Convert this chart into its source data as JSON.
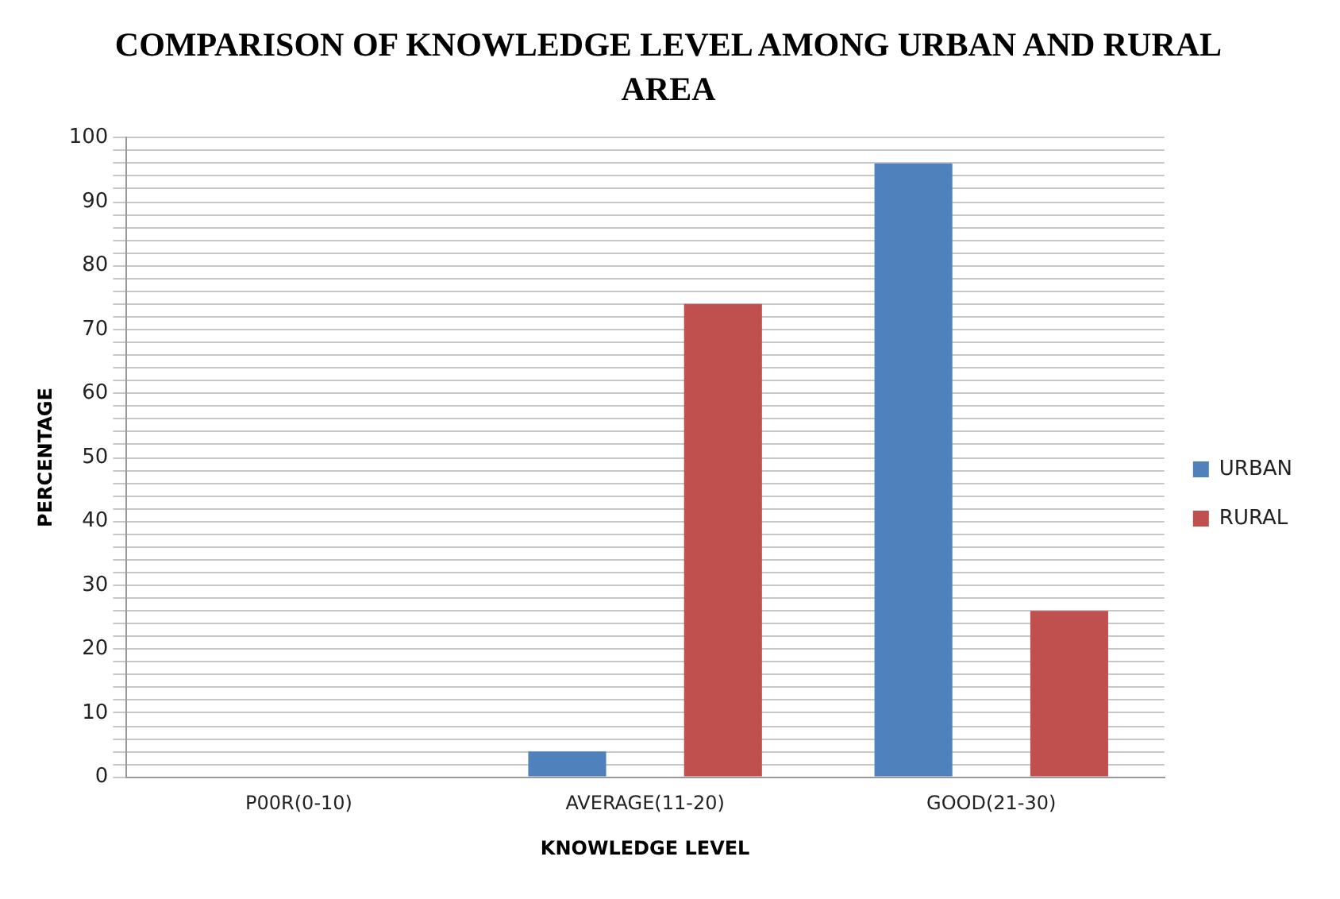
{
  "chart_data": {
    "type": "bar",
    "title": "COMPARISON OF KNOWLEDGE LEVEL AMONG URBAN AND RURAL AREA",
    "xlabel": "KNOWLEDGE LEVEL",
    "ylabel": "PERCENTAGE",
    "categories": [
      "P00R(0-10)",
      "AVERAGE(11-20)",
      "GOOD(21-30)"
    ],
    "series": [
      {
        "name": "URBAN",
        "color": "#4f81bd",
        "values": [
          0,
          4,
          96
        ]
      },
      {
        "name": "RURAL",
        "color": "#c0504d",
        "values": [
          0,
          74,
          26
        ]
      }
    ],
    "ylim": [
      0,
      100
    ],
    "yticks": [
      0,
      {
        "value": 2,
        "label": null
      },
      {
        "value": 4,
        "label": null
      },
      {
        "value": 6,
        "label": null
      },
      {
        "value": 8,
        "label": null
      },
      10,
      {
        "value": 12,
        "label": null
      },
      {
        "value": 14,
        "label": null
      },
      {
        "value": 16,
        "label": null
      },
      {
        "value": 18,
        "label": null
      },
      20,
      {
        "value": 22,
        "label": null
      },
      {
        "value": 24,
        "label": null
      },
      {
        "value": 26,
        "label": null
      },
      {
        "value": 28,
        "label": null
      },
      30,
      {
        "value": 32,
        "label": null
      },
      {
        "value": 34,
        "label": null
      },
      {
        "value": 36,
        "label": null
      },
      {
        "value": 38,
        "label": null
      },
      40,
      {
        "value": 42,
        "label": null
      },
      {
        "value": 44,
        "label": null
      },
      {
        "value": 46,
        "label": null
      },
      {
        "value": 48,
        "label": null
      },
      50,
      {
        "value": 52,
        "label": null
      },
      {
        "value": 54,
        "label": null
      },
      {
        "value": 56,
        "label": null
      },
      {
        "value": 58,
        "label": null
      },
      60,
      {
        "value": 62,
        "label": null
      },
      {
        "value": 64,
        "label": null
      },
      {
        "value": 66,
        "label": null
      },
      {
        "value": 68,
        "label": null
      },
      70,
      {
        "value": 72,
        "label": null
      },
      {
        "value": 74,
        "label": null
      },
      {
        "value": 76,
        "label": null
      },
      {
        "value": 78,
        "label": null
      },
      80,
      {
        "value": 82,
        "label": null
      },
      {
        "value": 84,
        "label": null
      },
      {
        "value": 86,
        "label": null
      },
      {
        "value": 88,
        "label": null
      },
      90,
      {
        "value": 92,
        "label": null
      },
      {
        "value": 94,
        "label": null
      },
      {
        "value": 96,
        "label": null
      },
      {
        "value": 98,
        "label": null
      },
      100
    ],
    "grid": "y",
    "legend": "right"
  }
}
